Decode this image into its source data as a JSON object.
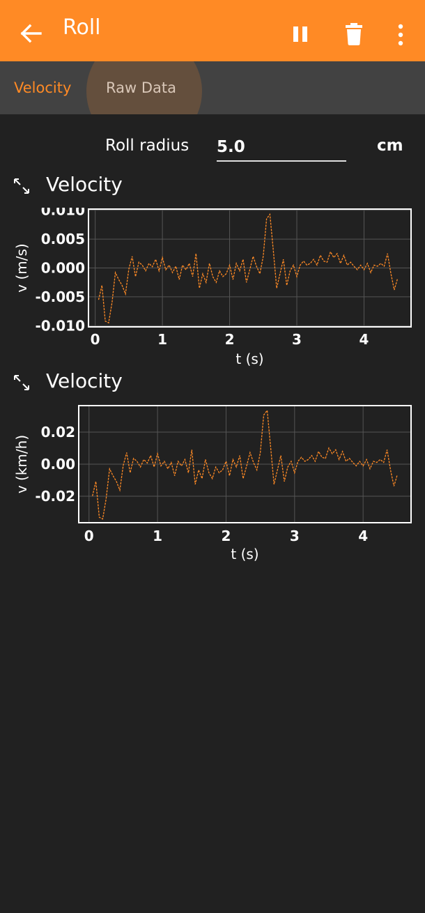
{
  "appbar": {
    "title": "Roll",
    "back_icon": "arrow-left-icon",
    "pause_icon": "pause-icon",
    "delete_icon": "trash-icon",
    "more_icon": "more-vert-icon",
    "background": "#FF8A25"
  },
  "tabs": [
    {
      "label": "Velocity",
      "selected": true
    },
    {
      "label": "Raw Data",
      "selected": false
    }
  ],
  "roll_radius": {
    "label": "Roll radius",
    "value": "5.0",
    "unit": "cm"
  },
  "graphs": [
    {
      "title": "Velocity",
      "icon": "expand-icon"
    },
    {
      "title": "Velocity",
      "icon": "expand-icon"
    }
  ],
  "chart_data": [
    {
      "type": "line",
      "xlabel": "t (s)",
      "ylabel": "v (m/s)",
      "xlim": [
        -0.1,
        4.7
      ],
      "ylim": [
        -0.0102,
        0.0102
      ],
      "xticks": [
        "0",
        "1",
        "2",
        "3",
        "4"
      ],
      "yticks": [
        "-0.010",
        "-0.005",
        "0.000",
        "0.005",
        "0.010"
      ],
      "grid": true,
      "line_color": "#FF8A25",
      "x": [
        0.05,
        0.1,
        0.15,
        0.2,
        0.25,
        0.3,
        0.35,
        0.4,
        0.45,
        0.5,
        0.55,
        0.6,
        0.65,
        0.7,
        0.75,
        0.8,
        0.85,
        0.9,
        0.95,
        1.0,
        1.05,
        1.1,
        1.15,
        1.2,
        1.25,
        1.3,
        1.35,
        1.4,
        1.45,
        1.5,
        1.55,
        1.6,
        1.65,
        1.7,
        1.75,
        1.8,
        1.85,
        1.9,
        1.95,
        2.0,
        2.05,
        2.1,
        2.15,
        2.2,
        2.25,
        2.3,
        2.35,
        2.4,
        2.45,
        2.5,
        2.55,
        2.6,
        2.65,
        2.7,
        2.75,
        2.8,
        2.85,
        2.9,
        2.95,
        3.0,
        3.05,
        3.1,
        3.15,
        3.2,
        3.25,
        3.3,
        3.35,
        3.4,
        3.45,
        3.5,
        3.55,
        3.6,
        3.65,
        3.7,
        3.75,
        3.8,
        3.85,
        3.9,
        3.95,
        4.0,
        4.05,
        4.1,
        4.15,
        4.2,
        4.25,
        4.3,
        4.35,
        4.4,
        4.45,
        4.5
      ],
      "values": [
        -0.0055,
        -0.003,
        -0.0092,
        -0.0095,
        -0.006,
        -0.0008,
        -0.002,
        -0.003,
        -0.0045,
        -0.0002,
        0.002,
        -0.0015,
        0.001,
        0.0005,
        -0.0005,
        0.0008,
        0.0002,
        0.0015,
        -0.0005,
        0.0018,
        -0.0003,
        0.0005,
        -0.0008,
        0.0003,
        -0.002,
        0.0005,
        -0.0003,
        0.0008,
        -0.0015,
        0.0025,
        -0.0035,
        -0.001,
        -0.0025,
        0.0008,
        -0.0015,
        -0.0025,
        -0.0005,
        -0.0015,
        -0.001,
        0.0005,
        -0.002,
        0.0008,
        -0.0005,
        0.0015,
        -0.0025,
        -0.0003,
        0.002,
        0.0003,
        -0.001,
        0.002,
        0.0085,
        0.0093,
        0.003,
        -0.0035,
        -0.001,
        0.0015,
        -0.003,
        -0.0005,
        0.0005,
        -0.0015,
        0.0005,
        0.0012,
        0.0005,
        0.0008,
        0.0015,
        0.0005,
        0.0022,
        0.0012,
        0.001,
        0.0028,
        0.0018,
        0.0025,
        0.0008,
        0.0022,
        0.0005,
        0.001,
        0.0003,
        -0.0003,
        0.0005,
        -0.0003,
        0.0008,
        -0.0008,
        0.0005,
        0.0003,
        0.0008,
        0.0003,
        0.0025,
        -0.001,
        -0.0038,
        -0.0018
      ]
    },
    {
      "type": "line",
      "xlabel": "t (s)",
      "ylabel": "v (km/h)",
      "xlim": [
        -0.15,
        4.7
      ],
      "ylim": [
        -0.0365,
        0.0365
      ],
      "xticks": [
        "0",
        "1",
        "2",
        "3",
        "4"
      ],
      "yticks": [
        "-0.02",
        "0.00",
        "0.02"
      ],
      "grid": true,
      "line_color": "#FF8A25",
      "x": [
        0.05,
        0.1,
        0.15,
        0.2,
        0.25,
        0.3,
        0.35,
        0.4,
        0.45,
        0.5,
        0.55,
        0.6,
        0.65,
        0.7,
        0.75,
        0.8,
        0.85,
        0.9,
        0.95,
        1.0,
        1.05,
        1.1,
        1.15,
        1.2,
        1.25,
        1.3,
        1.35,
        1.4,
        1.45,
        1.5,
        1.55,
        1.6,
        1.65,
        1.7,
        1.75,
        1.8,
        1.85,
        1.9,
        1.95,
        2.0,
        2.05,
        2.1,
        2.15,
        2.2,
        2.25,
        2.3,
        2.35,
        2.4,
        2.45,
        2.5,
        2.55,
        2.6,
        2.65,
        2.7,
        2.75,
        2.8,
        2.85,
        2.9,
        2.95,
        3.0,
        3.05,
        3.1,
        3.15,
        3.2,
        3.25,
        3.3,
        3.35,
        3.4,
        3.45,
        3.5,
        3.55,
        3.6,
        3.65,
        3.7,
        3.75,
        3.8,
        3.85,
        3.9,
        3.95,
        4.0,
        4.05,
        4.1,
        4.15,
        4.2,
        4.25,
        4.3,
        4.35,
        4.4,
        4.45,
        4.5
      ],
      "values": [
        -0.0198,
        -0.0108,
        -0.0331,
        -0.0342,
        -0.0216,
        -0.0029,
        -0.0072,
        -0.0108,
        -0.0162,
        -0.0007,
        0.0072,
        -0.0054,
        0.0036,
        0.0018,
        -0.0018,
        0.0029,
        0.0007,
        0.0054,
        -0.0018,
        0.0065,
        -0.0011,
        0.0018,
        -0.0029,
        0.0011,
        -0.0072,
        0.0018,
        -0.0011,
        0.0029,
        -0.0054,
        0.009,
        -0.0126,
        -0.0036,
        -0.009,
        0.0029,
        -0.0054,
        -0.009,
        -0.0018,
        -0.0054,
        -0.0036,
        0.0018,
        -0.0072,
        0.0029,
        -0.0018,
        0.0054,
        -0.009,
        -0.0011,
        0.0072,
        0.0011,
        -0.0036,
        0.0072,
        0.0306,
        0.0335,
        0.0108,
        -0.0126,
        -0.0036,
        0.0054,
        -0.0108,
        -0.0018,
        0.0018,
        -0.0054,
        0.0018,
        0.0043,
        0.0018,
        0.0029,
        0.0054,
        0.0018,
        0.0079,
        0.0043,
        0.0036,
        0.0101,
        0.0065,
        0.009,
        0.0029,
        0.0079,
        0.0018,
        0.0036,
        0.0011,
        -0.0011,
        0.0018,
        -0.0011,
        0.0029,
        -0.0029,
        0.0018,
        0.0011,
        0.0029,
        0.0011,
        0.009,
        -0.0036,
        -0.0137,
        -0.0065
      ]
    }
  ]
}
